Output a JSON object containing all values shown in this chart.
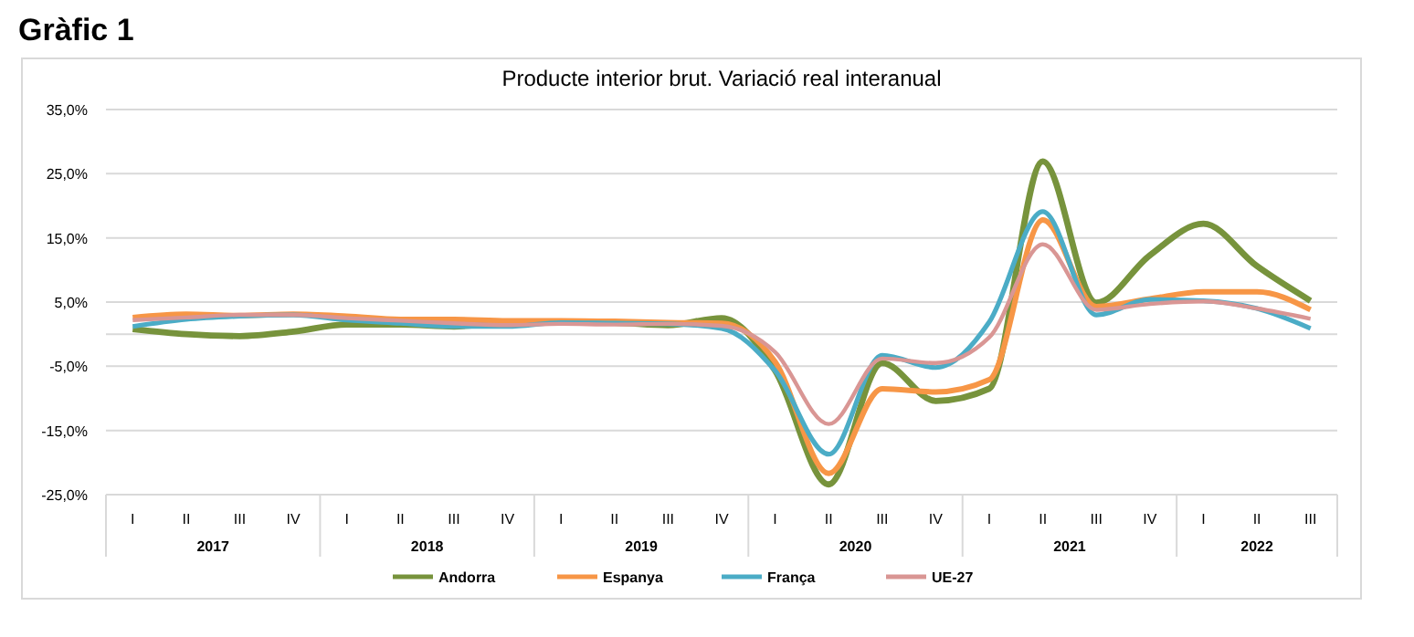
{
  "chart_data": {
    "type": "line",
    "title": "Gràfic 1",
    "subtitle": "Producte interior brut. Variació real interanual",
    "categories": [
      "I",
      "II",
      "III",
      "IV",
      "I",
      "II",
      "III",
      "IV",
      "I",
      "II",
      "III",
      "IV",
      "I",
      "II",
      "III",
      "IV",
      "I",
      "II",
      "III",
      "IV",
      "I",
      "II",
      "III"
    ],
    "annotations": [
      "2017",
      "2018",
      "2019",
      "2020",
      "2021",
      "2022"
    ],
    "series": [
      {
        "name": "Andorra",
        "color": "#77933c",
        "values": [
          0.8,
          0,
          -0.3,
          0.4,
          1.5,
          1.5,
          1.2,
          1.9,
          1.9,
          1.8,
          1.4,
          2.5,
          -5.7,
          -23.4,
          -4.5,
          -10.4,
          -8.5,
          26.9,
          4.9,
          12.3,
          17.2,
          10.6,
          5.2
        ]
      },
      {
        "name": "Espanya",
        "color": "#f79646",
        "values": [
          2.6,
          3.1,
          2.9,
          3.1,
          2.8,
          2.3,
          2.3,
          2.1,
          2.1,
          2.0,
          1.8,
          1.7,
          -4.3,
          -21.7,
          -8.5,
          -9.0,
          -7.1,
          17.8,
          4.3,
          5.5,
          6.6,
          6.6,
          3.8
        ]
      },
      {
        "name": "França",
        "color": "#4bacc6",
        "values": [
          1.2,
          2.3,
          2.8,
          3.0,
          2.2,
          1.7,
          1.2,
          1.2,
          1.8,
          1.7,
          1.6,
          0.9,
          -5.7,
          -18.7,
          -3.3,
          -5.2,
          1.9,
          19.1,
          3.0,
          5.4,
          5.2,
          4.0,
          0.9
        ]
      },
      {
        "name": "UE-27",
        "color": "#d99694",
        "values": [
          2.2,
          2.6,
          3.0,
          3.0,
          2.5,
          2.1,
          1.7,
          1.4,
          1.6,
          1.5,
          1.6,
          1.3,
          -2.8,
          -14.0,
          -3.8,
          -4.5,
          -0.5,
          14.0,
          3.8,
          4.7,
          5.1,
          4.0,
          2.4
        ]
      }
    ],
    "ylim": [
      -25,
      35
    ],
    "yticks": [
      {
        "value": -25,
        "label": "-25,0%"
      },
      {
        "value": -15,
        "label": "-15,0%"
      },
      {
        "value": -5,
        "label": "-5,0%"
      },
      {
        "value": 5,
        "label": "5,0%"
      },
      {
        "value": 15,
        "label": "15,0%"
      },
      {
        "value": 25,
        "label": "25,0%"
      },
      {
        "value": 35,
        "label": "35,0%"
      }
    ],
    "grid": "y",
    "legend": "bottom",
    "marker": "none",
    "line_style": "solid"
  }
}
